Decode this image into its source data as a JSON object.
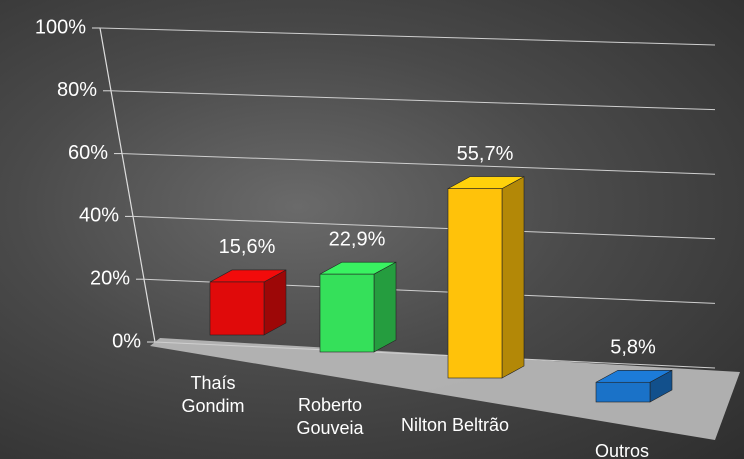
{
  "chart_data": {
    "type": "bar3d",
    "categories": [
      "Thaís Gondim",
      "Roberto Gouveia",
      "Nilton Beltrão",
      "Outros"
    ],
    "values": [
      15.6,
      22.9,
      55.7,
      5.8
    ],
    "value_labels": [
      "15,6%",
      "22,9%",
      "55,7%",
      "5,8%"
    ],
    "colors": [
      "#e00a0a",
      "#35e05a",
      "#ffc20a",
      "#1a72c8"
    ],
    "ylim": [
      0,
      100
    ],
    "yticks": [
      {
        "value": 0,
        "label": "0%"
      },
      {
        "value": 20,
        "label": "20%"
      },
      {
        "value": 40,
        "label": "40%"
      },
      {
        "value": 60,
        "label": "60%"
      },
      {
        "value": 80,
        "label": "80%"
      },
      {
        "value": 100,
        "label": "100%"
      }
    ],
    "grid": true
  }
}
